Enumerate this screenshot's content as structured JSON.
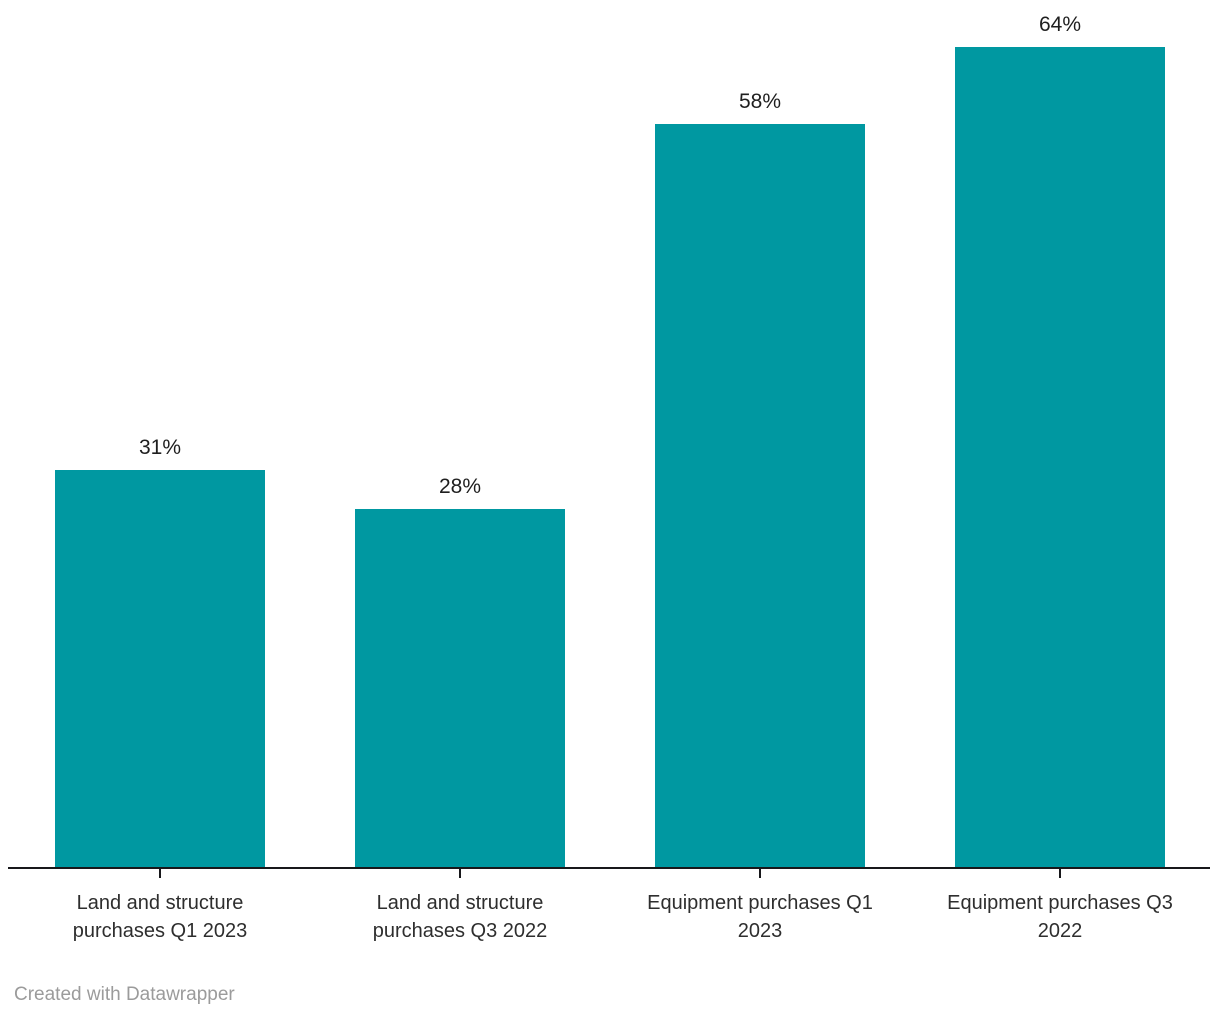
{
  "chart_data": {
    "type": "bar",
    "title": "",
    "xlabel": "",
    "ylabel": "",
    "categories": [
      "Land and structure purchases Q1 2023",
      "Land and structure purchases Q3 2022",
      "Equipment purchases Q1 2023",
      "Equipment purchases Q3 2022"
    ],
    "category_lines": [
      [
        "Land and structure",
        "purchases Q1 2023"
      ],
      [
        "Land and structure",
        "purchases Q3 2022"
      ],
      [
        "Equipment purchases Q1",
        "2023"
      ],
      [
        "Equipment purchases Q3",
        "2022"
      ]
    ],
    "values": [
      31,
      28,
      58,
      64
    ],
    "value_labels": [
      "31%",
      "28%",
      "58%",
      "64%"
    ],
    "unit": "%",
    "ylim": [
      0,
      67.6
    ],
    "grid": false,
    "legend": "none",
    "colors": {
      "bar": "#0098a1",
      "axis": "#18181b",
      "value_label": "#1f1f1f",
      "category_label": "#2e2e2e",
      "credit": "#9b9b9b"
    }
  },
  "footer": {
    "credit": "Created with Datawrapper"
  }
}
